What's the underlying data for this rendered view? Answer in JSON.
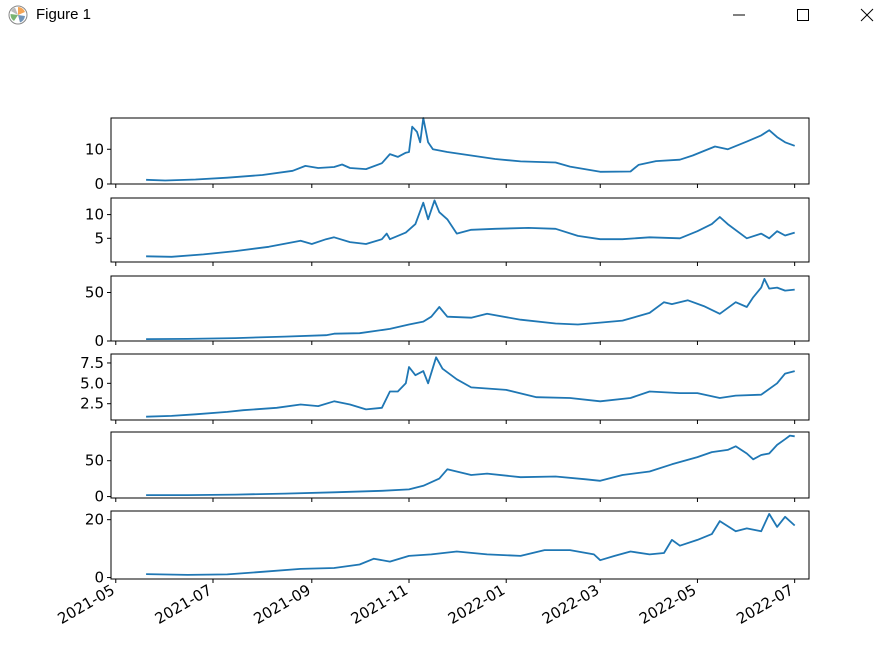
{
  "window": {
    "title": "Figure 1",
    "icon": "matplotlib-logo-icon",
    "controls": [
      "minimize-icon",
      "maximize-icon",
      "close-icon"
    ]
  },
  "colors": {
    "line": "#1f77b4",
    "axes": "#000000",
    "background": "#ffffff"
  },
  "chart_data": {
    "type": "line",
    "shared_x": true,
    "x_axis": {
      "type": "date",
      "range": [
        "2021-04-28",
        "2022-07-10"
      ],
      "tick_labels": [
        "2021-05",
        "2021-07",
        "2021-09",
        "2021-11",
        "2022-01",
        "2022-03",
        "2022-05",
        "2022-07"
      ],
      "tick_dates": [
        "2021-05-01",
        "2021-07-01",
        "2021-09-01",
        "2021-11-01",
        "2022-01-01",
        "2022-03-01",
        "2022-05-01",
        "2022-07-01"
      ]
    },
    "grid": false,
    "panels": [
      {
        "ylim": [
          0,
          19
        ],
        "yticks": [
          0,
          10
        ],
        "ytick_labels": [
          "0",
          "10"
        ],
        "points": [
          [
            "2021-05-20",
            1.2
          ],
          [
            "2021-06-01",
            1.0
          ],
          [
            "2021-06-20",
            1.3
          ],
          [
            "2021-07-10",
            1.8
          ],
          [
            "2021-08-01",
            2.6
          ],
          [
            "2021-08-20",
            3.8
          ],
          [
            "2021-08-28",
            5.2
          ],
          [
            "2021-09-05",
            4.6
          ],
          [
            "2021-09-15",
            4.9
          ],
          [
            "2021-09-20",
            5.6
          ],
          [
            "2021-09-25",
            4.6
          ],
          [
            "2021-10-05",
            4.3
          ],
          [
            "2021-10-15",
            6.0
          ],
          [
            "2021-10-20",
            8.6
          ],
          [
            "2021-10-25",
            7.8
          ],
          [
            "2021-10-30",
            9.0
          ],
          [
            "2021-11-01",
            9.2
          ],
          [
            "2021-11-03",
            16.5
          ],
          [
            "2021-11-06",
            15.0
          ],
          [
            "2021-11-08",
            12.0
          ],
          [
            "2021-11-10",
            19.0
          ],
          [
            "2021-11-13",
            12.0
          ],
          [
            "2021-11-16",
            10.0
          ],
          [
            "2021-11-25",
            9.2
          ],
          [
            "2021-12-10",
            8.2
          ],
          [
            "2021-12-25",
            7.2
          ],
          [
            "2022-01-10",
            6.5
          ],
          [
            "2022-02-01",
            6.2
          ],
          [
            "2022-02-10",
            5.0
          ],
          [
            "2022-03-01",
            3.5
          ],
          [
            "2022-03-20",
            3.6
          ],
          [
            "2022-03-25",
            5.5
          ],
          [
            "2022-04-05",
            6.6
          ],
          [
            "2022-04-20",
            7.0
          ],
          [
            "2022-04-28",
            8.2
          ],
          [
            "2022-05-05",
            9.5
          ],
          [
            "2022-05-12",
            10.8
          ],
          [
            "2022-05-20",
            10.0
          ],
          [
            "2022-06-01",
            12.2
          ],
          [
            "2022-06-10",
            14.0
          ],
          [
            "2022-06-15",
            15.5
          ],
          [
            "2022-06-20",
            13.5
          ],
          [
            "2022-06-25",
            12.0
          ],
          [
            "2022-07-01",
            11.0
          ]
        ]
      },
      {
        "ylim": [
          0,
          13.5
        ],
        "yticks": [
          5,
          10
        ],
        "ytick_labels": [
          "5",
          "10"
        ],
        "points": [
          [
            "2021-05-20",
            1.2
          ],
          [
            "2021-06-05",
            1.1
          ],
          [
            "2021-06-25",
            1.6
          ],
          [
            "2021-07-15",
            2.3
          ],
          [
            "2021-08-05",
            3.2
          ],
          [
            "2021-08-25",
            4.5
          ],
          [
            "2021-09-01",
            3.8
          ],
          [
            "2021-09-10",
            4.8
          ],
          [
            "2021-09-15",
            5.2
          ],
          [
            "2021-09-25",
            4.2
          ],
          [
            "2021-10-05",
            3.8
          ],
          [
            "2021-10-15",
            4.8
          ],
          [
            "2021-10-18",
            6.0
          ],
          [
            "2021-10-20",
            4.8
          ],
          [
            "2021-10-30",
            6.2
          ],
          [
            "2021-11-05",
            8.0
          ],
          [
            "2021-11-10",
            12.5
          ],
          [
            "2021-11-13",
            9.0
          ],
          [
            "2021-11-17",
            13.0
          ],
          [
            "2021-11-20",
            10.5
          ],
          [
            "2021-11-25",
            9.0
          ],
          [
            "2021-12-01",
            6.0
          ],
          [
            "2021-12-10",
            6.8
          ],
          [
            "2021-12-25",
            7.0
          ],
          [
            "2022-01-15",
            7.2
          ],
          [
            "2022-02-01",
            7.0
          ],
          [
            "2022-02-15",
            5.5
          ],
          [
            "2022-03-01",
            4.8
          ],
          [
            "2022-03-15",
            4.8
          ],
          [
            "2022-04-01",
            5.2
          ],
          [
            "2022-04-20",
            5.0
          ],
          [
            "2022-05-01",
            6.5
          ],
          [
            "2022-05-10",
            8.0
          ],
          [
            "2022-05-15",
            9.5
          ],
          [
            "2022-05-20",
            8.0
          ],
          [
            "2022-06-01",
            5.0
          ],
          [
            "2022-06-10",
            6.0
          ],
          [
            "2022-06-15",
            5.0
          ],
          [
            "2022-06-20",
            6.5
          ],
          [
            "2022-06-25",
            5.6
          ],
          [
            "2022-07-01",
            6.2
          ]
        ]
      },
      {
        "ylim": [
          0,
          67
        ],
        "yticks": [
          0,
          50
        ],
        "ytick_labels": [
          "0",
          "50"
        ],
        "points": [
          [
            "2021-05-20",
            2.0
          ],
          [
            "2021-06-15",
            2.2
          ],
          [
            "2021-07-15",
            3.0
          ],
          [
            "2021-08-15",
            4.5
          ],
          [
            "2021-09-10",
            6.0
          ],
          [
            "2021-09-15",
            7.5
          ],
          [
            "2021-10-01",
            8.0
          ],
          [
            "2021-10-20",
            12.5
          ],
          [
            "2021-11-01",
            17.0
          ],
          [
            "2021-11-10",
            20.0
          ],
          [
            "2021-11-15",
            25.0
          ],
          [
            "2021-11-20",
            35.0
          ],
          [
            "2021-11-25",
            25.0
          ],
          [
            "2021-12-10",
            24.0
          ],
          [
            "2021-12-20",
            28.0
          ],
          [
            "2022-01-10",
            22.0
          ],
          [
            "2022-02-01",
            18.0
          ],
          [
            "2022-02-15",
            17.0
          ],
          [
            "2022-03-01",
            19.0
          ],
          [
            "2022-03-15",
            21.0
          ],
          [
            "2022-04-01",
            29.0
          ],
          [
            "2022-04-10",
            40.0
          ],
          [
            "2022-04-15",
            38.0
          ],
          [
            "2022-04-25",
            42.0
          ],
          [
            "2022-05-05",
            36.0
          ],
          [
            "2022-05-15",
            28.0
          ],
          [
            "2022-05-25",
            40.0
          ],
          [
            "2022-06-01",
            35.0
          ],
          [
            "2022-06-05",
            45.0
          ],
          [
            "2022-06-10",
            55.0
          ],
          [
            "2022-06-12",
            64.0
          ],
          [
            "2022-06-15",
            54.0
          ],
          [
            "2022-06-20",
            55.0
          ],
          [
            "2022-06-25",
            52.0
          ],
          [
            "2022-07-01",
            53.0
          ]
        ]
      },
      {
        "ylim": [
          0.5,
          8.6
        ],
        "yticks": [
          2.5,
          5.0,
          7.5
        ],
        "ytick_labels": [
          "2.5",
          "5.0",
          "7.5"
        ],
        "points": [
          [
            "2021-05-20",
            0.9
          ],
          [
            "2021-06-05",
            1.0
          ],
          [
            "2021-06-20",
            1.2
          ],
          [
            "2021-07-10",
            1.5
          ],
          [
            "2021-07-20",
            1.7
          ],
          [
            "2021-08-10",
            2.0
          ],
          [
            "2021-08-25",
            2.4
          ],
          [
            "2021-09-05",
            2.2
          ],
          [
            "2021-09-15",
            2.8
          ],
          [
            "2021-09-25",
            2.4
          ],
          [
            "2021-10-05",
            1.8
          ],
          [
            "2021-10-15",
            2.0
          ],
          [
            "2021-10-20",
            4.0
          ],
          [
            "2021-10-25",
            4.0
          ],
          [
            "2021-10-30",
            5.0
          ],
          [
            "2021-11-01",
            7.0
          ],
          [
            "2021-11-05",
            6.0
          ],
          [
            "2021-11-10",
            6.5
          ],
          [
            "2021-11-13",
            5.0
          ],
          [
            "2021-11-18",
            8.2
          ],
          [
            "2021-11-22",
            6.8
          ],
          [
            "2021-12-01",
            5.5
          ],
          [
            "2021-12-10",
            4.5
          ],
          [
            "2022-01-01",
            4.2
          ],
          [
            "2022-01-20",
            3.3
          ],
          [
            "2022-02-10",
            3.2
          ],
          [
            "2022-03-01",
            2.8
          ],
          [
            "2022-03-20",
            3.2
          ],
          [
            "2022-04-01",
            4.0
          ],
          [
            "2022-04-20",
            3.8
          ],
          [
            "2022-05-01",
            3.8
          ],
          [
            "2022-05-15",
            3.2
          ],
          [
            "2022-05-25",
            3.5
          ],
          [
            "2022-06-10",
            3.6
          ],
          [
            "2022-06-20",
            5.0
          ],
          [
            "2022-06-25",
            6.2
          ],
          [
            "2022-07-01",
            6.5
          ]
        ]
      },
      {
        "ylim": [
          -2,
          90
        ],
        "yticks": [
          0,
          50
        ],
        "ytick_labels": [
          "0",
          "50"
        ],
        "points": [
          [
            "2021-05-20",
            2.0
          ],
          [
            "2021-06-15",
            2.0
          ],
          [
            "2021-07-15",
            2.8
          ],
          [
            "2021-08-15",
            4.2
          ],
          [
            "2021-09-15",
            6.0
          ],
          [
            "2021-10-15",
            8.0
          ],
          [
            "2021-11-01",
            10.0
          ],
          [
            "2021-11-10",
            15.0
          ],
          [
            "2021-11-20",
            25.0
          ],
          [
            "2021-11-25",
            38.0
          ],
          [
            "2021-12-10",
            30.0
          ],
          [
            "2021-12-20",
            32.0
          ],
          [
            "2022-01-10",
            27.0
          ],
          [
            "2022-02-01",
            28.0
          ],
          [
            "2022-02-20",
            24.0
          ],
          [
            "2022-03-01",
            22.0
          ],
          [
            "2022-03-15",
            30.0
          ],
          [
            "2022-04-01",
            35.0
          ],
          [
            "2022-04-15",
            45.0
          ],
          [
            "2022-05-01",
            55.0
          ],
          [
            "2022-05-10",
            62.0
          ],
          [
            "2022-05-20",
            65.0
          ],
          [
            "2022-05-25",
            70.0
          ],
          [
            "2022-06-01",
            60.0
          ],
          [
            "2022-06-05",
            52.0
          ],
          [
            "2022-06-10",
            58.0
          ],
          [
            "2022-06-15",
            60.0
          ],
          [
            "2022-06-20",
            72.0
          ],
          [
            "2022-06-25",
            80.0
          ],
          [
            "2022-06-28",
            85.0
          ],
          [
            "2022-07-01",
            84.0
          ]
        ]
      },
      {
        "ylim": [
          -0.5,
          23
        ],
        "yticks": [
          0,
          20
        ],
        "ytick_labels": [
          "0",
          "20"
        ],
        "points": [
          [
            "2021-05-20",
            1.2
          ],
          [
            "2021-06-15",
            0.9
          ],
          [
            "2021-07-10",
            1.1
          ],
          [
            "2021-08-01",
            2.0
          ],
          [
            "2021-08-25",
            3.0
          ],
          [
            "2021-09-15",
            3.3
          ],
          [
            "2021-10-01",
            4.5
          ],
          [
            "2021-10-10",
            6.5
          ],
          [
            "2021-10-20",
            5.5
          ],
          [
            "2021-11-01",
            7.5
          ],
          [
            "2021-11-15",
            8.0
          ],
          [
            "2021-12-01",
            9.0
          ],
          [
            "2021-12-20",
            8.0
          ],
          [
            "2022-01-10",
            7.5
          ],
          [
            "2022-01-25",
            9.5
          ],
          [
            "2022-02-10",
            9.5
          ],
          [
            "2022-02-25",
            8.0
          ],
          [
            "2022-03-01",
            6.0
          ],
          [
            "2022-03-10",
            7.5
          ],
          [
            "2022-03-20",
            9.0
          ],
          [
            "2022-04-01",
            8.0
          ],
          [
            "2022-04-10",
            8.5
          ],
          [
            "2022-04-15",
            13.0
          ],
          [
            "2022-04-20",
            11.0
          ],
          [
            "2022-05-01",
            13.0
          ],
          [
            "2022-05-10",
            15.0
          ],
          [
            "2022-05-15",
            19.5
          ],
          [
            "2022-05-25",
            16.0
          ],
          [
            "2022-06-01",
            17.0
          ],
          [
            "2022-06-10",
            16.0
          ],
          [
            "2022-06-15",
            22.0
          ],
          [
            "2022-06-20",
            17.5
          ],
          [
            "2022-06-25",
            21.0
          ],
          [
            "2022-07-01",
            18.0
          ]
        ]
      }
    ]
  }
}
